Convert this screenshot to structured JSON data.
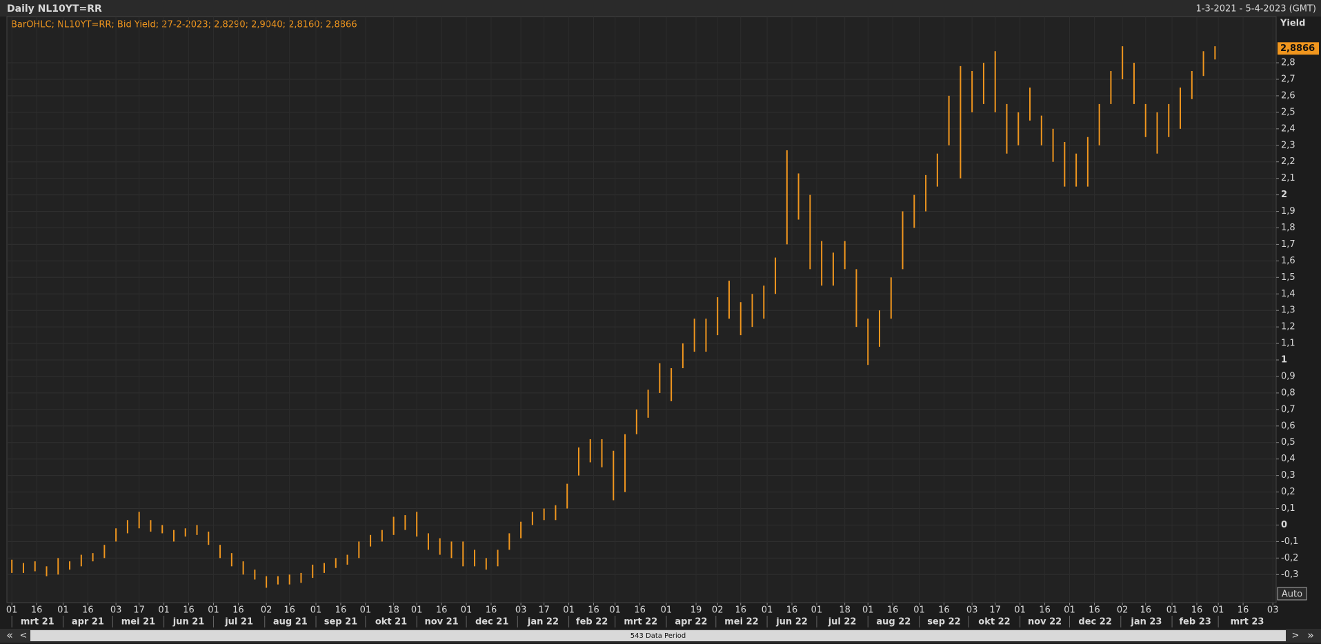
{
  "header": {
    "title": "Daily NL10YT=RR",
    "range": "1-3-2021 - 5-4-2023 (GMT)"
  },
  "chart_data": {
    "type": "range_bar",
    "legend_text": "BarOHLC; NL10YT=RR; Bid Yield; 27-2-2023; 2,8290; 2,9040; 2,8160; 2,8866",
    "y_axis_label": "Yield",
    "color": "#f0961e",
    "grid": true,
    "x": [
      "2021-03-01",
      "2021-03-08",
      "2021-03-15",
      "2021-03-22",
      "2021-03-29",
      "2021-04-05",
      "2021-04-12",
      "2021-04-19",
      "2021-04-26",
      "2021-05-03",
      "2021-05-10",
      "2021-05-17",
      "2021-05-24",
      "2021-05-31",
      "2021-06-07",
      "2021-06-14",
      "2021-06-21",
      "2021-06-28",
      "2021-07-05",
      "2021-07-12",
      "2021-07-19",
      "2021-07-26",
      "2021-08-02",
      "2021-08-09",
      "2021-08-16",
      "2021-08-23",
      "2021-08-30",
      "2021-09-06",
      "2021-09-13",
      "2021-09-20",
      "2021-09-27",
      "2021-10-04",
      "2021-10-11",
      "2021-10-18",
      "2021-10-25",
      "2021-11-01",
      "2021-11-08",
      "2021-11-15",
      "2021-11-22",
      "2021-11-29",
      "2021-12-06",
      "2021-12-13",
      "2021-12-20",
      "2021-12-27",
      "2022-01-03",
      "2022-01-10",
      "2022-01-17",
      "2022-01-24",
      "2022-01-31",
      "2022-02-07",
      "2022-02-14",
      "2022-02-21",
      "2022-02-28",
      "2022-03-07",
      "2022-03-14",
      "2022-03-21",
      "2022-03-28",
      "2022-04-04",
      "2022-04-11",
      "2022-04-18",
      "2022-04-25",
      "2022-05-02",
      "2022-05-09",
      "2022-05-16",
      "2022-05-23",
      "2022-05-30",
      "2022-06-06",
      "2022-06-13",
      "2022-06-20",
      "2022-06-27",
      "2022-07-04",
      "2022-07-11",
      "2022-07-18",
      "2022-07-25",
      "2022-08-01",
      "2022-08-08",
      "2022-08-15",
      "2022-08-22",
      "2022-08-29",
      "2022-09-05",
      "2022-09-12",
      "2022-09-19",
      "2022-09-26",
      "2022-10-03",
      "2022-10-10",
      "2022-10-17",
      "2022-10-24",
      "2022-10-31",
      "2022-11-07",
      "2022-11-14",
      "2022-11-21",
      "2022-11-28",
      "2022-12-05",
      "2022-12-12",
      "2022-12-19",
      "2022-12-26",
      "2023-01-02",
      "2023-01-09",
      "2023-01-16",
      "2023-01-23",
      "2023-01-30",
      "2023-02-06",
      "2023-02-13",
      "2023-02-20",
      "2023-02-27"
    ],
    "low": [
      -0.29,
      -0.29,
      -0.28,
      -0.31,
      -0.3,
      -0.27,
      -0.25,
      -0.22,
      -0.2,
      -0.1,
      -0.05,
      -0.02,
      -0.04,
      -0.05,
      -0.1,
      -0.07,
      -0.06,
      -0.12,
      -0.2,
      -0.25,
      -0.3,
      -0.33,
      -0.38,
      -0.36,
      -0.36,
      -0.35,
      -0.32,
      -0.29,
      -0.26,
      -0.24,
      -0.2,
      -0.13,
      -0.1,
      -0.06,
      -0.03,
      -0.07,
      -0.15,
      -0.18,
      -0.2,
      -0.25,
      -0.25,
      -0.27,
      -0.25,
      -0.15,
      -0.08,
      0.0,
      0.03,
      0.03,
      0.1,
      0.3,
      0.38,
      0.35,
      0.15,
      0.2,
      0.55,
      0.65,
      0.8,
      0.75,
      0.95,
      1.05,
      1.05,
      1.15,
      1.25,
      1.15,
      1.2,
      1.25,
      1.4,
      1.7,
      1.85,
      1.55,
      1.45,
      1.45,
      1.55,
      1.2,
      0.97,
      1.08,
      1.25,
      1.55,
      1.8,
      1.9,
      2.05,
      2.3,
      2.1,
      2.5,
      2.55,
      2.5,
      2.25,
      2.3,
      2.45,
      2.3,
      2.2,
      2.05,
      2.05,
      2.05,
      2.3,
      2.55,
      2.7,
      2.55,
      2.35,
      2.25,
      2.35,
      2.4,
      2.58,
      2.72,
      2.82
    ],
    "high": [
      -0.21,
      -0.23,
      -0.22,
      -0.25,
      -0.2,
      -0.22,
      -0.18,
      -0.17,
      -0.12,
      -0.02,
      0.03,
      0.08,
      0.03,
      0.0,
      -0.03,
      -0.02,
      0.0,
      -0.04,
      -0.12,
      -0.17,
      -0.22,
      -0.27,
      -0.31,
      -0.31,
      -0.3,
      -0.29,
      -0.24,
      -0.23,
      -0.2,
      -0.18,
      -0.1,
      -0.06,
      -0.03,
      0.05,
      0.06,
      0.08,
      -0.05,
      -0.08,
      -0.1,
      -0.1,
      -0.15,
      -0.2,
      -0.15,
      -0.05,
      0.02,
      0.08,
      0.1,
      0.12,
      0.25,
      0.47,
      0.52,
      0.52,
      0.45,
      0.55,
      0.7,
      0.82,
      0.98,
      0.95,
      1.1,
      1.25,
      1.25,
      1.38,
      1.48,
      1.35,
      1.4,
      1.45,
      1.62,
      2.27,
      2.13,
      2.0,
      1.72,
      1.65,
      1.72,
      1.55,
      1.25,
      1.3,
      1.5,
      1.9,
      2.0,
      2.12,
      2.25,
      2.6,
      2.78,
      2.75,
      2.8,
      2.87,
      2.55,
      2.5,
      2.65,
      2.48,
      2.4,
      2.32,
      2.25,
      2.35,
      2.55,
      2.75,
      2.9,
      2.8,
      2.55,
      2.5,
      2.55,
      2.65,
      2.75,
      2.87,
      2.9
    ],
    "xlim": [
      "2021-02-26",
      "2023-04-05"
    ],
    "ylim": [
      -0.47,
      3.08
    ],
    "yticks": [
      {
        "value": -0.3,
        "label": "-0,3"
      },
      {
        "value": -0.2,
        "label": "-0,2"
      },
      {
        "value": -0.1,
        "label": "-0,1"
      },
      0,
      {
        "value": 0.1,
        "label": "0,1"
      },
      {
        "value": 0.2,
        "label": "0,2"
      },
      {
        "value": 0.3,
        "label": "0,3"
      },
      {
        "value": 0.4,
        "label": "0,4"
      },
      {
        "value": 0.5,
        "label": "0,5"
      },
      {
        "value": 0.6,
        "label": "0,6"
      },
      {
        "value": 0.7,
        "label": "0,7"
      },
      {
        "value": 0.8,
        "label": "0,8"
      },
      {
        "value": 0.9,
        "label": "0,9"
      },
      1,
      {
        "value": 1.1,
        "label": "1,1"
      },
      {
        "value": 1.2,
        "label": "1,2"
      },
      {
        "value": 1.3,
        "label": "1,3"
      },
      {
        "value": 1.4,
        "label": "1,4"
      },
      {
        "value": 1.5,
        "label": "1,5"
      },
      {
        "value": 1.6,
        "label": "1,6"
      },
      {
        "value": 1.7,
        "label": "1,7"
      },
      {
        "value": 1.8,
        "label": "1,8"
      },
      {
        "value": 1.9,
        "label": "1,9"
      },
      2,
      {
        "value": 2.1,
        "label": "2,1"
      },
      {
        "value": 2.2,
        "label": "2,2"
      },
      {
        "value": 2.3,
        "label": "2,3"
      },
      {
        "value": 2.4,
        "label": "2,4"
      },
      {
        "value": 2.5,
        "label": "2,5"
      },
      {
        "value": 2.6,
        "label": "2,6"
      },
      {
        "value": 2.7,
        "label": "2,7"
      },
      {
        "value": 2.8,
        "label": "2,8"
      }
    ],
    "xticks": [
      {
        "value": "2021-03-01",
        "label": "01"
      },
      {
        "value": "2021-03-16",
        "label": "16"
      },
      {
        "value": "2021-04-01",
        "label": "01"
      },
      {
        "value": "2021-04-16",
        "label": "16"
      },
      {
        "value": "2021-05-03",
        "label": "03"
      },
      {
        "value": "2021-05-17",
        "label": "17"
      },
      {
        "value": "2021-06-01",
        "label": "01"
      },
      {
        "value": "2021-06-16",
        "label": "16"
      },
      {
        "value": "2021-07-01",
        "label": "01"
      },
      {
        "value": "2021-07-16",
        "label": "16"
      },
      {
        "value": "2021-08-02",
        "label": "02"
      },
      {
        "value": "2021-08-16",
        "label": "16"
      },
      {
        "value": "2021-09-01",
        "label": "01"
      },
      {
        "value": "2021-09-16",
        "label": "16"
      },
      {
        "value": "2021-10-01",
        "label": "01"
      },
      {
        "value": "2021-10-18",
        "label": "18"
      },
      {
        "value": "2021-11-01",
        "label": "01"
      },
      {
        "value": "2021-11-16",
        "label": "16"
      },
      {
        "value": "2021-12-01",
        "label": "01"
      },
      {
        "value": "2021-12-16",
        "label": "16"
      },
      {
        "value": "2022-01-03",
        "label": "03"
      },
      {
        "value": "2022-01-17",
        "label": "17"
      },
      {
        "value": "2022-02-01",
        "label": "01"
      },
      {
        "value": "2022-02-16",
        "label": "16"
      },
      {
        "value": "2022-03-01",
        "label": "01"
      },
      {
        "value": "2022-03-16",
        "label": "16"
      },
      {
        "value": "2022-04-01",
        "label": "01"
      },
      {
        "value": "2022-04-19",
        "label": "19"
      },
      {
        "value": "2022-05-02",
        "label": "02"
      },
      {
        "value": "2022-05-16",
        "label": "16"
      },
      {
        "value": "2022-06-01",
        "label": "01"
      },
      {
        "value": "2022-06-16",
        "label": "16"
      },
      {
        "value": "2022-07-01",
        "label": "01"
      },
      {
        "value": "2022-07-18",
        "label": "18"
      },
      {
        "value": "2022-08-01",
        "label": "01"
      },
      {
        "value": "2022-08-16",
        "label": "16"
      },
      {
        "value": "2022-09-01",
        "label": "01"
      },
      {
        "value": "2022-09-16",
        "label": "16"
      },
      {
        "value": "2022-10-03",
        "label": "03"
      },
      {
        "value": "2022-10-17",
        "label": "17"
      },
      {
        "value": "2022-11-01",
        "label": "01"
      },
      {
        "value": "2022-11-16",
        "label": "16"
      },
      {
        "value": "2022-12-01",
        "label": "01"
      },
      {
        "value": "2022-12-16",
        "label": "16"
      },
      {
        "value": "2023-01-02",
        "label": "02"
      },
      {
        "value": "2023-01-16",
        "label": "16"
      },
      {
        "value": "2023-02-01",
        "label": "01"
      },
      {
        "value": "2023-02-16",
        "label": "16"
      },
      {
        "value": "2023-03-01",
        "label": "01"
      },
      {
        "value": "2023-03-16",
        "label": "16"
      },
      {
        "value": "2023-04-03",
        "label": "03"
      }
    ],
    "xmonths": [
      {
        "value": "2021-03-01",
        "label": "mrt 21"
      },
      {
        "value": "2021-04-01",
        "label": "apr 21"
      },
      {
        "value": "2021-05-01",
        "label": "mei 21"
      },
      {
        "value": "2021-06-01",
        "label": "jun 21"
      },
      {
        "value": "2021-07-01",
        "label": "jul 21"
      },
      {
        "value": "2021-08-01",
        "label": "aug 21"
      },
      {
        "value": "2021-09-01",
        "label": "sep 21"
      },
      {
        "value": "2021-10-01",
        "label": "okt 21"
      },
      {
        "value": "2021-11-01",
        "label": "nov 21"
      },
      {
        "value": "2021-12-01",
        "label": "dec 21"
      },
      {
        "value": "2022-01-01",
        "label": "jan 22"
      },
      {
        "value": "2022-02-01",
        "label": "feb 22"
      },
      {
        "value": "2022-03-01",
        "label": "mrt 22"
      },
      {
        "value": "2022-04-01",
        "label": "apr 22"
      },
      {
        "value": "2022-05-01",
        "label": "mei 22"
      },
      {
        "value": "2022-06-01",
        "label": "jun 22"
      },
      {
        "value": "2022-07-01",
        "label": "jul 22"
      },
      {
        "value": "2022-08-01",
        "label": "aug 22"
      },
      {
        "value": "2022-09-01",
        "label": "sep 22"
      },
      {
        "value": "2022-10-01",
        "label": "okt 22"
      },
      {
        "value": "2022-11-01",
        "label": "nov 22"
      },
      {
        "value": "2022-12-01",
        "label": "dec 22"
      },
      {
        "value": "2023-01-01",
        "label": "jan 23"
      },
      {
        "value": "2023-02-01",
        "label": "feb 23"
      },
      {
        "value": "2023-03-01",
        "label": "mrt 23"
      }
    ],
    "last_value": 2.8866,
    "last_value_label": "2,8866"
  },
  "controls": {
    "auto": "Auto",
    "period": "543 Data Period",
    "first": "«",
    "prev": "<",
    "next": ">",
    "last": "»"
  }
}
